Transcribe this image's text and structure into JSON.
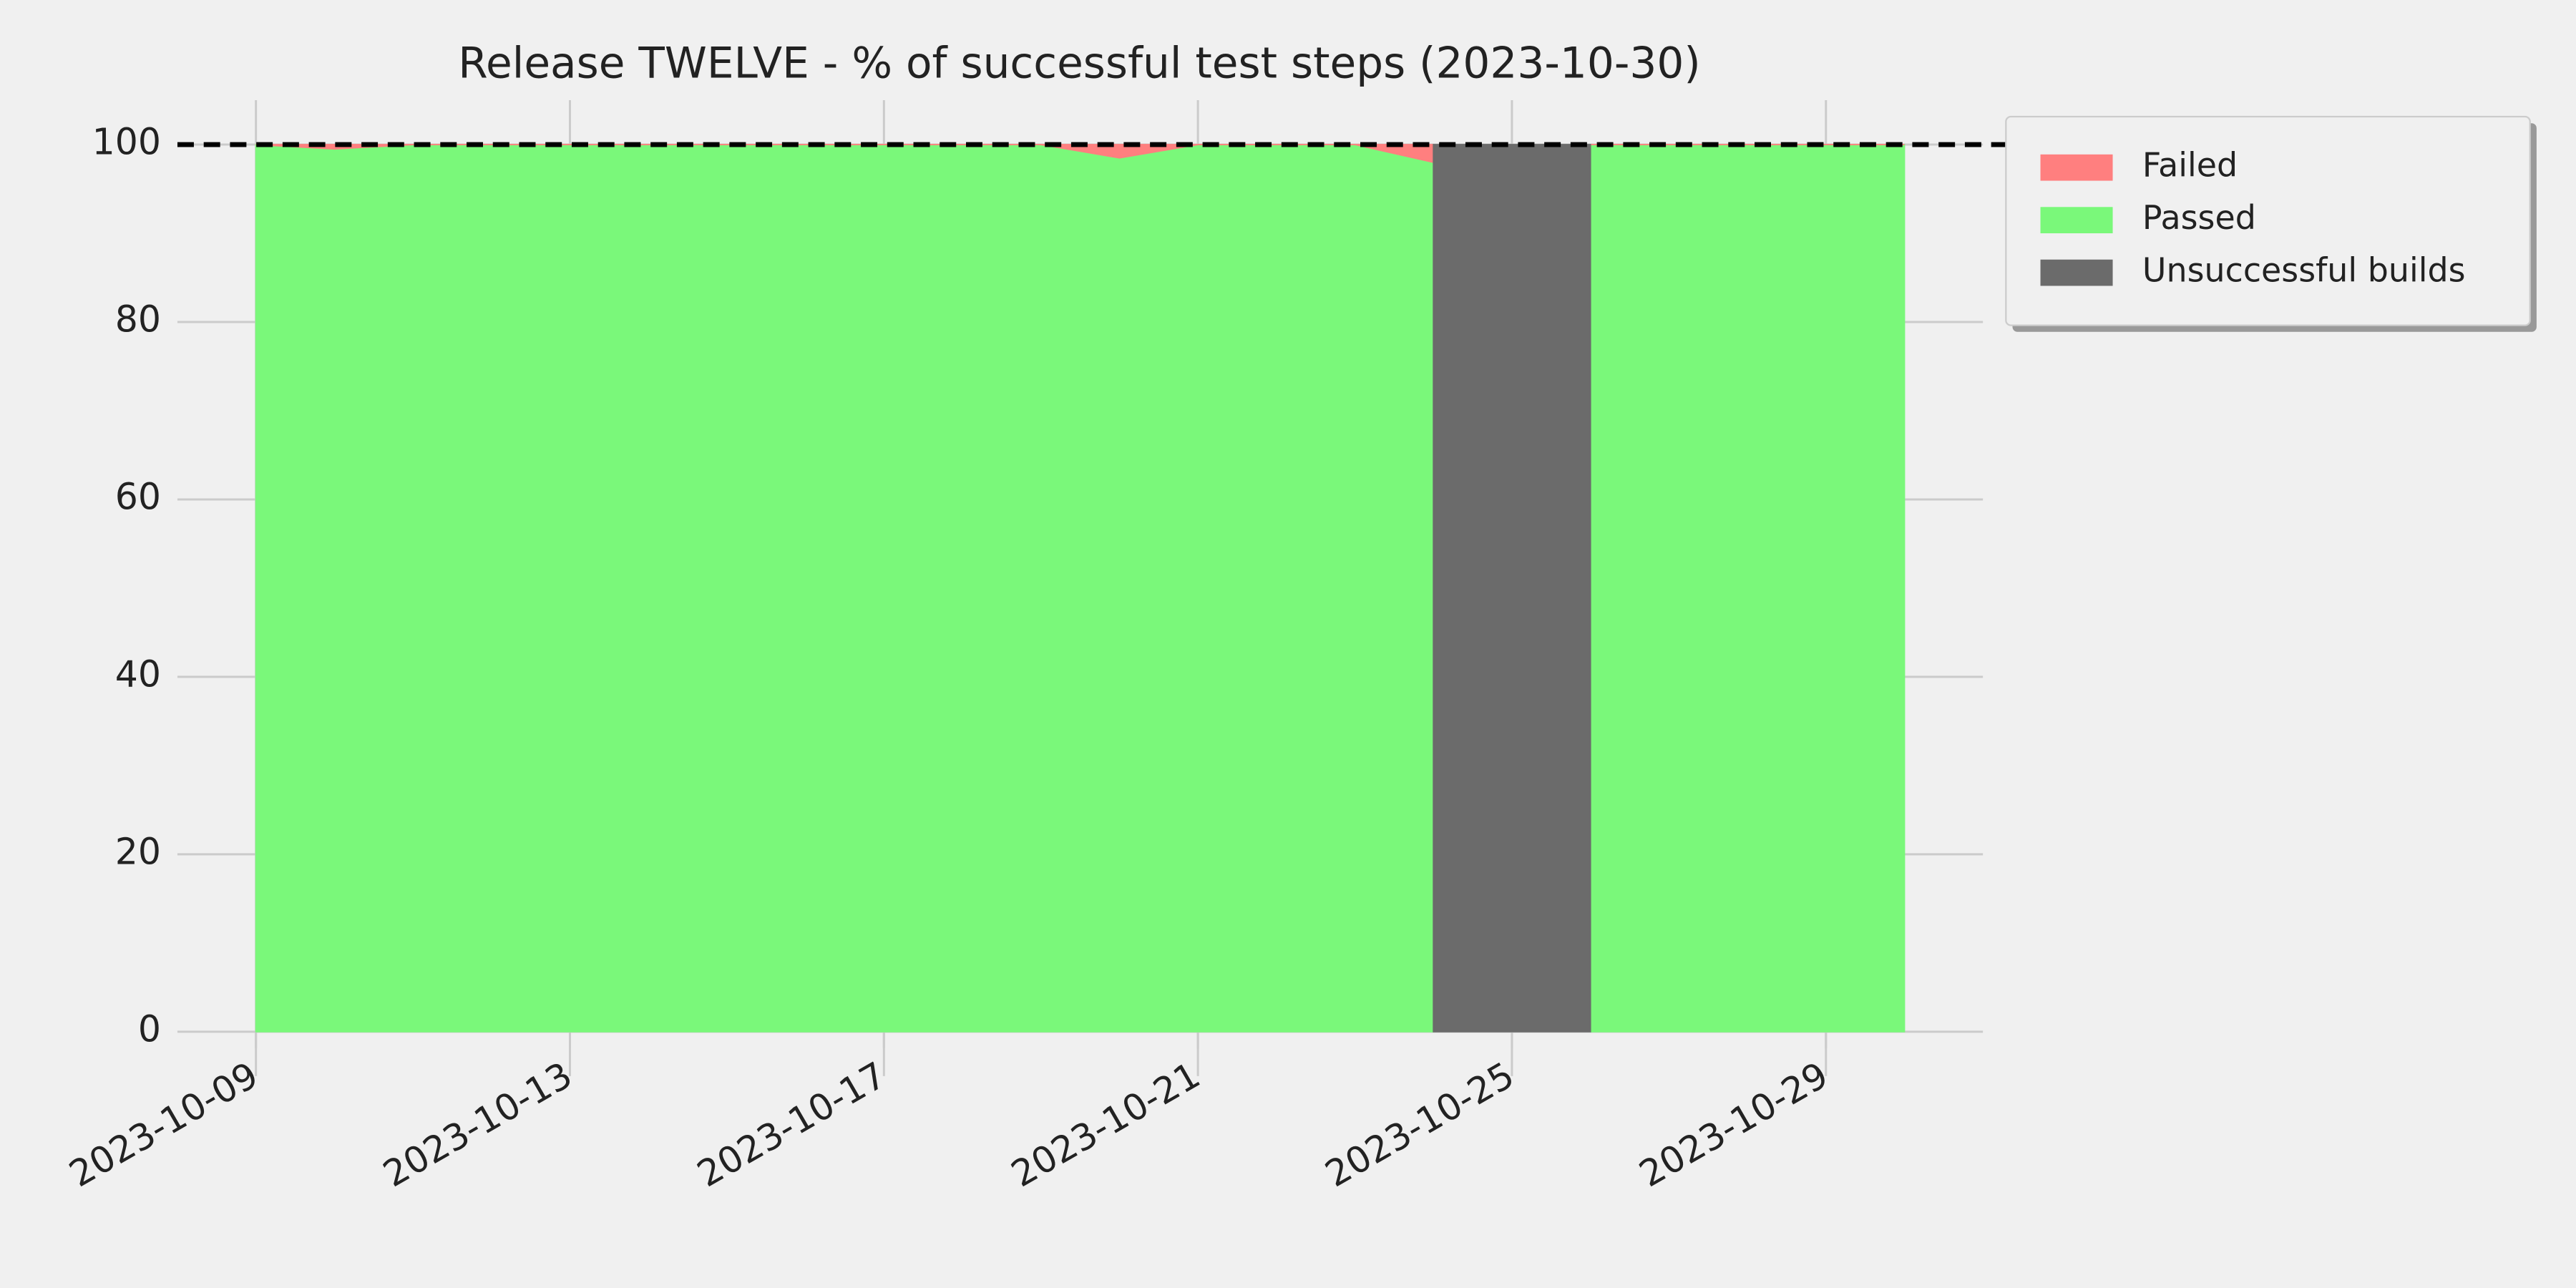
{
  "chart_data": {
    "type": "stacked_area",
    "title": "Release TWELVE - % of successful test steps (2023-10-30)",
    "x": [
      "2023-10-09",
      "2023-10-10",
      "2023-10-11",
      "2023-10-12",
      "2023-10-13",
      "2023-10-14",
      "2023-10-15",
      "2023-10-16",
      "2023-10-17",
      "2023-10-18",
      "2023-10-19",
      "2023-10-20",
      "2023-10-21",
      "2023-10-22",
      "2023-10-23",
      "2023-10-24",
      "2023-10-25",
      "2023-10-26",
      "2023-10-27",
      "2023-10-28",
      "2023-10-29",
      "2023-10-30"
    ],
    "series": [
      {
        "name": "Passed",
        "color": "#7af87a",
        "values": [
          100,
          99.5,
          100,
          100,
          100,
          100,
          100,
          100,
          100,
          100,
          100,
          98.5,
          100,
          100,
          100,
          98,
          null,
          100,
          100,
          100,
          100,
          100
        ]
      },
      {
        "name": "Failed",
        "color": "#ff7f7f",
        "values": [
          0,
          0.5,
          0,
          0,
          0,
          0,
          0,
          0,
          0,
          0,
          0,
          1.5,
          0,
          0,
          0,
          2,
          null,
          0,
          0,
          0,
          0,
          0
        ]
      },
      {
        "name": "Unsuccessful builds",
        "color": "#6b6b6b",
        "stack": false,
        "values": [
          null,
          null,
          null,
          null,
          null,
          null,
          null,
          null,
          null,
          null,
          null,
          null,
          null,
          null,
          null,
          100,
          100,
          100,
          null,
          null,
          null,
          null
        ]
      }
    ],
    "legend_order": [
      "Failed",
      "Passed",
      "Unsuccessful builds"
    ],
    "reference_line": 100,
    "xlim": [
      "2023-10-08",
      "2023-10-31"
    ],
    "xticks": [
      "2023-10-09",
      "2023-10-13",
      "2023-10-17",
      "2023-10-21",
      "2023-10-25",
      "2023-10-29"
    ],
    "ylim": [
      -5,
      105
    ],
    "yticks": [
      0,
      20,
      40,
      60,
      80,
      100
    ],
    "grid": true,
    "legend": "outside upper right"
  }
}
